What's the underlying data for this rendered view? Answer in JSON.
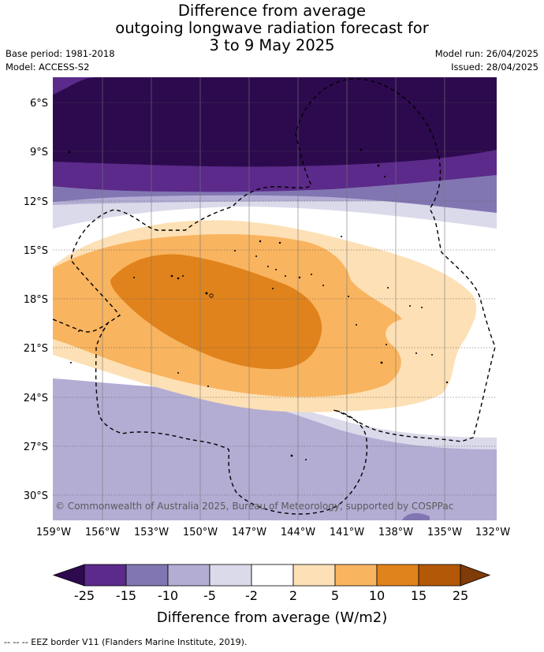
{
  "title": {
    "line1": "Difference from average",
    "line2": "outgoing longwave radiation forecast for",
    "line3": "3 to 9 May 2025"
  },
  "meta": {
    "base_period": "Base period: 1981-2018",
    "model": "Model: ACCESS-S2",
    "model_run": "Model run: 26/04/2025",
    "issued": "Issued: 28/04/2025"
  },
  "map": {
    "lon_labels": [
      "159°W",
      "156°W",
      "153°W",
      "150°W",
      "147°W",
      "144°W",
      "141°W",
      "138°W",
      "135°W",
      "132°W"
    ],
    "lat_labels": [
      "6°S",
      "9°S",
      "12°S",
      "15°S",
      "18°S",
      "21°S",
      "24°S",
      "27°S",
      "30°S"
    ],
    "lon_range": [
      -159,
      -132
    ],
    "lat_range": [
      -4.3,
      -31.5
    ],
    "copyright": "© Commonwealth of Australia 2025, Bureau of Meteorology, supported by COSPPac"
  },
  "colorbar": {
    "ticks": [
      "-25",
      "-15",
      "-10",
      "-5",
      "-2",
      "2",
      "5",
      "10",
      "15",
      "25"
    ],
    "colors": [
      "#2d0a4e",
      "#5b2a8a",
      "#8276b2",
      "#b3add4",
      "#dadaeb",
      "#ffffff",
      "#fde0b5",
      "#f9b45f",
      "#e0831c",
      "#b35806",
      "#7f3b08"
    ],
    "label": "Difference from average (W/m2)"
  },
  "footer": {
    "note": "-- -- -- EEZ border V11 (Flanders Marine Institute, 2019)."
  }
}
